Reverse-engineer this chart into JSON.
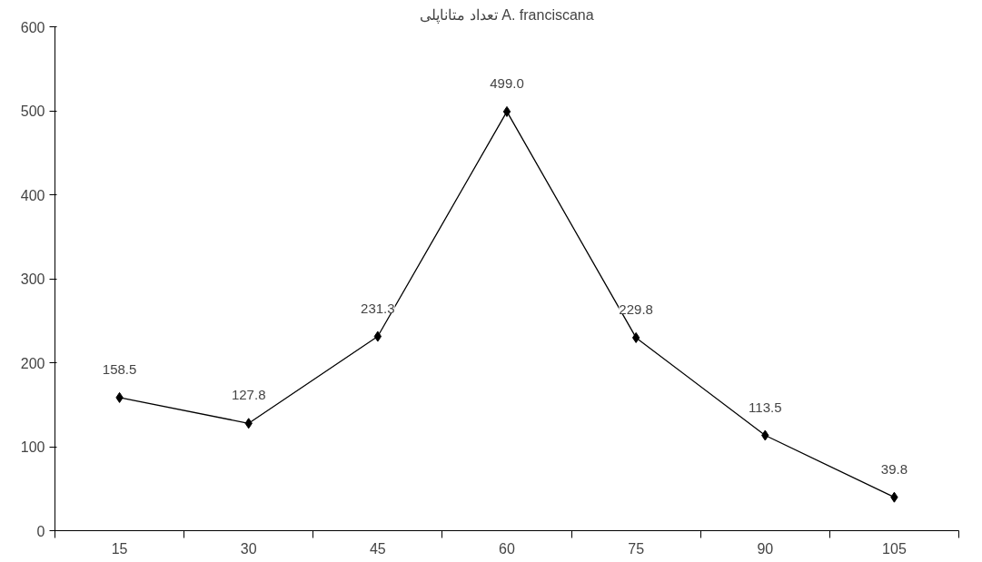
{
  "chart_data": {
    "type": "line",
    "title": "تعداد متاناپلی A. franciscana",
    "categories": [
      "15",
      "30",
      "45",
      "60",
      "75",
      "90",
      "105"
    ],
    "values": [
      158.5,
      127.8,
      231.3,
      499.0,
      229.8,
      113.5,
      39.8
    ],
    "value_labels": [
      "158.5",
      "127.8",
      "231.3",
      "499.0",
      "229.8",
      "113.5",
      "39.8"
    ],
    "color": "#000000",
    "marker": "diamond",
    "line_style": "solid",
    "ylim": [
      0,
      600
    ],
    "yticks": [
      0,
      100,
      200,
      300,
      400,
      500,
      600
    ],
    "grid": false
  }
}
